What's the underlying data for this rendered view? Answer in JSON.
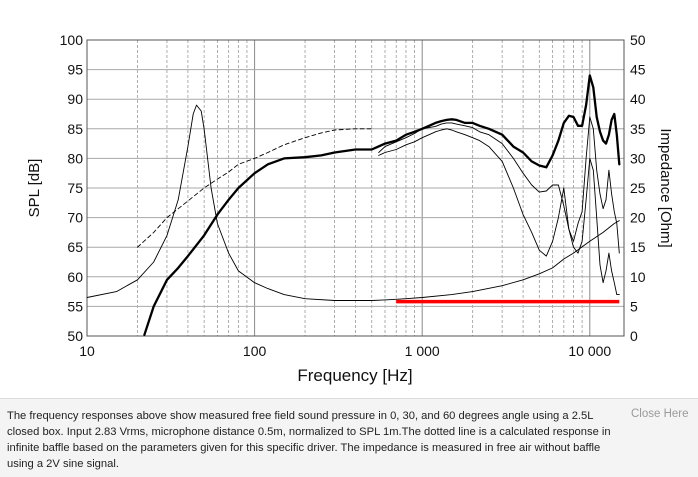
{
  "chart_data": {
    "type": "line",
    "title": "",
    "xlabel": "Frequency [Hz]",
    "ylabel": "SPL [dB]",
    "y2label": "Impedance [Ohm]",
    "xscale": "log",
    "xlim": [
      10,
      16000
    ],
    "ylim": [
      50,
      100
    ],
    "y2lim": [
      0,
      50
    ],
    "grid": true,
    "x_tick_labels": [
      {
        "value": 10,
        "label": "10"
      },
      {
        "value": 100,
        "label": "100"
      },
      {
        "value": 1000,
        "label": "1 000"
      },
      {
        "value": 10000,
        "label": "10 000"
      }
    ],
    "y_ticks": [
      50,
      55,
      60,
      65,
      70,
      75,
      80,
      85,
      90,
      95,
      100
    ],
    "y2_ticks": [
      0,
      5,
      10,
      15,
      20,
      25,
      30,
      35,
      40,
      45,
      50
    ],
    "series": [
      {
        "id": "spl_0deg",
        "axis": "left",
        "style": "thick",
        "color": "#000000",
        "x": [
          22,
          25,
          30,
          35,
          40,
          50,
          60,
          70,
          80,
          100,
          120,
          150,
          200,
          250,
          300,
          400,
          500,
          600,
          700,
          800,
          900,
          1000,
          1100,
          1200,
          1300,
          1400,
          1500,
          1600,
          1800,
          2000,
          2200,
          2500,
          3000,
          3500,
          4000,
          4500,
          5000,
          5500,
          6000,
          6500,
          7000,
          7500,
          8000,
          8500,
          9000,
          9500,
          10000,
          10500,
          11000,
          11500,
          12000,
          12500,
          13000,
          13500,
          14000,
          14500,
          15000
        ],
        "y": [
          50.2,
          55,
          59.5,
          61.5,
          63.5,
          67,
          70.5,
          73,
          75,
          77.5,
          79,
          80,
          80.2,
          80.5,
          81,
          81.5,
          81.5,
          82.5,
          83,
          84,
          84.5,
          85,
          85.5,
          86,
          86.3,
          86.5,
          86.6,
          86.5,
          86,
          86,
          85.5,
          85,
          84,
          82,
          81,
          79.5,
          78.8,
          78.5,
          80.5,
          83,
          86,
          87.2,
          87,
          85.5,
          85.5,
          89,
          94,
          92,
          87,
          84.5,
          83,
          82.5,
          84,
          86.5,
          87.5,
          84,
          79
        ]
      },
      {
        "id": "spl_30deg",
        "axis": "left",
        "style": "thin",
        "color": "#000000",
        "x": [
          550,
          600,
          700,
          800,
          900,
          1000,
          1100,
          1200,
          1300,
          1400,
          1500,
          1600,
          1800,
          2000,
          2200,
          2500,
          3000,
          3500,
          4000,
          4500,
          5000,
          5500,
          6000,
          6500,
          7000,
          7500,
          8000,
          8500,
          9000,
          9500,
          10000,
          10500,
          11000,
          11500,
          12000,
          12500,
          13000,
          13500,
          14000,
          14500,
          15000
        ],
        "y": [
          81,
          82,
          82.8,
          83.5,
          84.2,
          85,
          85.2,
          85.4,
          85.8,
          86,
          86,
          85.8,
          85.5,
          85.2,
          84.5,
          84,
          82.5,
          80,
          77.5,
          75.5,
          74.3,
          74.5,
          75.5,
          75.5,
          72,
          68,
          66,
          69,
          71,
          80,
          87,
          85,
          78,
          74,
          71.5,
          73,
          78,
          74,
          71,
          69,
          64
        ]
      },
      {
        "id": "spl_60deg",
        "axis": "left",
        "style": "thin",
        "color": "#000000",
        "x": [
          550,
          600,
          700,
          800,
          900,
          1000,
          1100,
          1200,
          1300,
          1400,
          1500,
          1600,
          1800,
          2000,
          2200,
          2500,
          3000,
          3500,
          4000,
          4500,
          5000,
          5500,
          6000,
          6500,
          7000,
          7500,
          8000,
          8500,
          9000,
          9500,
          10000,
          10500,
          11000,
          11500,
          12000,
          12500,
          13000,
          13500,
          14000,
          14500,
          15000
        ],
        "y": [
          80.5,
          81,
          81.5,
          82.3,
          82.8,
          83.5,
          84,
          84.5,
          84.8,
          85,
          84.8,
          84.5,
          84,
          83.5,
          83,
          82,
          79.5,
          75,
          70.5,
          67.5,
          64.5,
          63.5,
          66,
          70,
          75,
          68,
          65,
          64,
          66,
          73,
          80,
          78,
          70,
          62,
          59,
          61,
          64,
          61,
          59,
          57,
          57
        ]
      },
      {
        "id": "spl_calculated",
        "axis": "left",
        "style": "dashed",
        "color": "#000000",
        "x": [
          20,
          25,
          30,
          40,
          50,
          60,
          70,
          80,
          100,
          120,
          150,
          200,
          250,
          300,
          400,
          500
        ],
        "y": [
          65,
          67.5,
          70,
          72.8,
          75,
          76.5,
          77.7,
          79,
          80,
          81,
          82.3,
          83.5,
          84.3,
          84.8,
          85,
          85
        ]
      },
      {
        "id": "impedance",
        "axis": "right",
        "style": "thin",
        "color": "#000000",
        "x": [
          10,
          15,
          20,
          25,
          30,
          35,
          40,
          43,
          45,
          48,
          50,
          55,
          60,
          70,
          80,
          100,
          120,
          150,
          200,
          300,
          400,
          500,
          600,
          800,
          1000,
          1500,
          2000,
          3000,
          4000,
          5000,
          6000,
          7000,
          8000,
          10000,
          12000,
          14000,
          15000
        ],
        "y": [
          6.5,
          7.5,
          9.5,
          12.5,
          17,
          23,
          32,
          37.5,
          39,
          38,
          35,
          25,
          19,
          14,
          11,
          9,
          8,
          7,
          6.3,
          6,
          6,
          6,
          6.1,
          6.3,
          6.5,
          7,
          7.5,
          8.5,
          9.5,
          10.5,
          11.5,
          13,
          14,
          16,
          17.5,
          19,
          19.5
        ]
      }
    ],
    "reference_line": {
      "axis": "left",
      "color": "#ff0000",
      "x": [
        700,
        15000
      ],
      "y": 55.8
    }
  },
  "caption": {
    "text": "The frequency responses above show measured free field sound pressure in 0, 30, and 60 degrees angle using a 2.5L closed box. Input 2.83 Vrms, microphone distance 0.5m, normalized to SPL 1m.The dotted line is a calculated response in infinite baffle based on the parameters given for this specific driver.  The impedance is measured in free air without baffle using a 2V sine signal."
  },
  "close_label": "Close Here"
}
